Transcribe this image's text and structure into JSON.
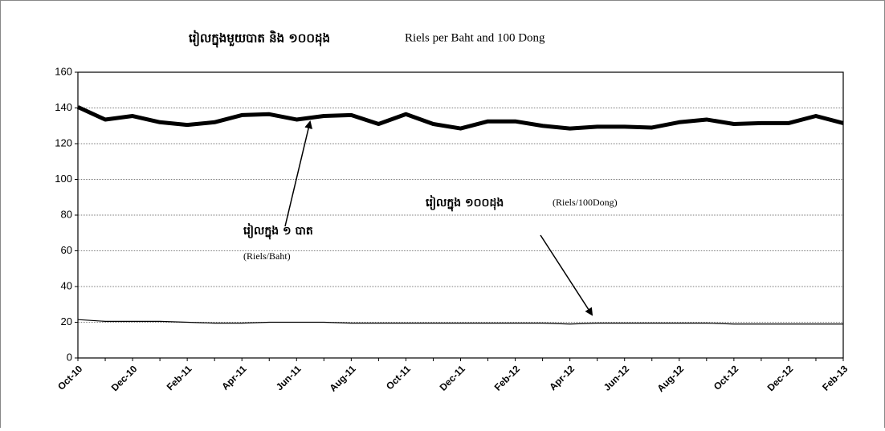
{
  "chart_data": {
    "type": "line",
    "title": "រៀលក្នុងមួយបាត  និង  ១០០ដុង",
    "subtitle": "Riels per Baht and 100 Dong",
    "annotations": [
      "រៀលក្នុង  ១  បាត",
      "(Riels/Baht)",
      "រៀលក្នុង  ១០០ដុង",
      "(Riels/100Dong)"
    ],
    "categories": [
      "Oct-10",
      null,
      "Dec-10",
      null,
      "Feb-11",
      null,
      "Apr-11",
      null,
      "Jun-11",
      null,
      "Aug-11",
      null,
      "Oct-11",
      null,
      "Dec-11",
      null,
      "Feb-12",
      null,
      "Apr-12",
      null,
      "Jun-12",
      null,
      "Aug-12",
      null,
      "Oct-12",
      null,
      "Dec-12",
      null,
      "Feb-13"
    ],
    "series": [
      {
        "color": "#000000",
        "values": [
          140.5,
          133.5,
          135.5,
          132,
          130.5,
          132,
          136,
          136.5,
          133.5,
          135.5,
          136,
          131,
          136.5,
          131,
          128.5,
          132.5,
          132.5,
          130,
          128.5,
          129.5,
          129.5,
          129,
          132,
          133.5,
          131,
          131.5,
          131.5,
          135.5,
          131.5
        ]
      },
      {
        "color": "#000000",
        "values": [
          21.5,
          20.5,
          20.5,
          20.5,
          20,
          19.5,
          19.5,
          20,
          20,
          20,
          19.5,
          19.5,
          19.5,
          19.5,
          19.5,
          19.5,
          19.5,
          19.5,
          19,
          19.5,
          19.5,
          19.5,
          19.5,
          19.5,
          19,
          19,
          19,
          19,
          19
        ]
      }
    ],
    "ylim": [
      0,
      160
    ],
    "yticks": [
      0,
      20,
      40,
      60,
      80,
      100,
      120,
      140,
      160
    ],
    "grid": true
  }
}
